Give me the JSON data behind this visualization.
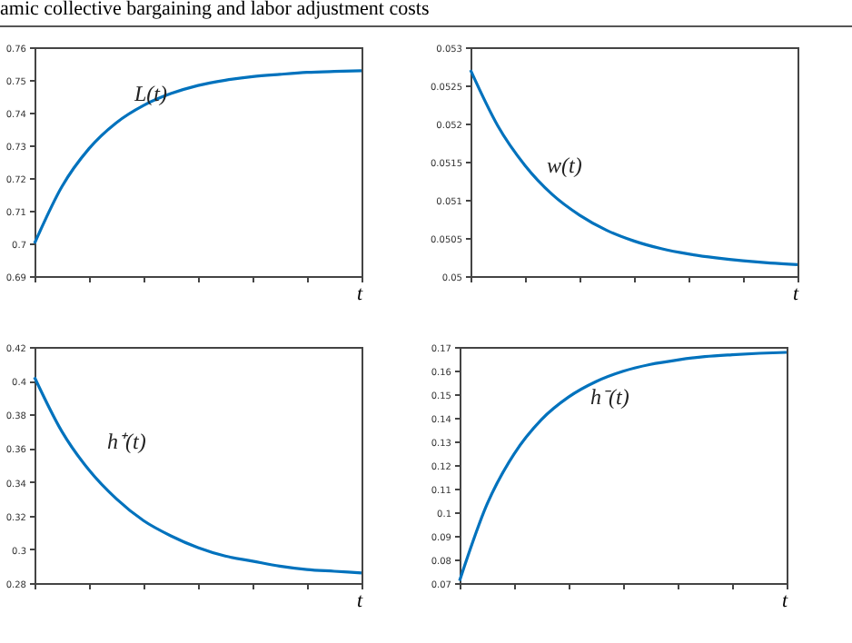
{
  "chart_data": [
    {
      "type": "line",
      "annotations": [
        "amic collective bargaining and labor adjustment costs"
      ],
      "xlabel": "t",
      "categories": [
        null,
        null,
        null,
        null,
        null,
        null,
        null,
        null,
        null,
        null,
        null,
        null,
        null
      ],
      "series": [
        {
          "name": "L(t)",
          "color": "#0072bd",
          "values": [
            0.7,
            0.7173,
            0.729,
            0.7369,
            0.7422,
            0.7458,
            0.7483,
            0.7499,
            0.751,
            0.7517,
            0.7523,
            0.7526,
            0.7528
          ]
        }
      ],
      "ylim": [
        0.69,
        0.76
      ],
      "yticks": [
        0.69,
        0.7,
        0.71,
        0.72,
        0.73,
        0.74,
        0.75,
        0.76
      ],
      "tick_labels": "y",
      "grid": false,
      "legend": false
    },
    {
      "type": "line",
      "xlabel": "t",
      "categories": [
        null,
        null,
        null,
        null,
        null,
        null,
        null,
        null,
        null,
        null,
        null,
        null,
        null
      ],
      "series": [
        {
          "name": "w(t)",
          "color": "#0072bd",
          "values": [
            0.0527,
            0.05197,
            0.05145,
            0.05107,
            0.0508,
            0.0506,
            0.05046,
            0.05036,
            0.05029,
            0.05024,
            0.0502,
            0.05017,
            0.05015
          ]
        }
      ],
      "ylim": [
        0.05,
        0.053
      ],
      "yticks": [
        0.05,
        0.0505,
        0.051,
        0.0515,
        0.052,
        0.0525,
        0.053
      ],
      "tick_labels": "y",
      "grid": false,
      "legend": false
    },
    {
      "type": "line",
      "xlabel": "t",
      "categories": [
        null,
        null,
        null,
        null,
        null,
        null,
        null,
        null,
        null,
        null,
        null,
        null,
        null
      ],
      "series": [
        {
          "name": "h⁺(t)",
          "color": "#0072bd",
          "values": [
            0.402,
            0.37,
            0.347,
            0.33,
            0.317,
            0.308,
            0.301,
            0.296,
            0.293,
            0.29,
            0.288,
            0.287,
            0.286
          ]
        }
      ],
      "ylim": [
        0.28,
        0.42
      ],
      "yticks": [
        0.28,
        0.3,
        0.32,
        0.34,
        0.36,
        0.38,
        0.4,
        0.42
      ],
      "tick_labels": "y",
      "grid": false,
      "legend": false
    },
    {
      "type": "line",
      "xlabel": "t",
      "categories": [
        null,
        null,
        null,
        null,
        null,
        null,
        null,
        null,
        null,
        null,
        null,
        null,
        null
      ],
      "series": [
        {
          "name": "h⁻(t)",
          "color": "#0072bd",
          "values": [
            0.071,
            0.1032,
            0.1247,
            0.1392,
            0.1488,
            0.1553,
            0.1597,
            0.1626,
            0.1645,
            0.1659,
            0.1667,
            0.1673,
            0.1677
          ]
        }
      ],
      "ylim": [
        0.07,
        0.17
      ],
      "yticks": [
        0.07,
        0.08,
        0.09,
        0.1,
        0.11,
        0.12,
        0.13,
        0.14,
        0.15,
        0.16,
        0.17
      ],
      "tick_labels": "y",
      "grid": false,
      "legend": false
    }
  ]
}
